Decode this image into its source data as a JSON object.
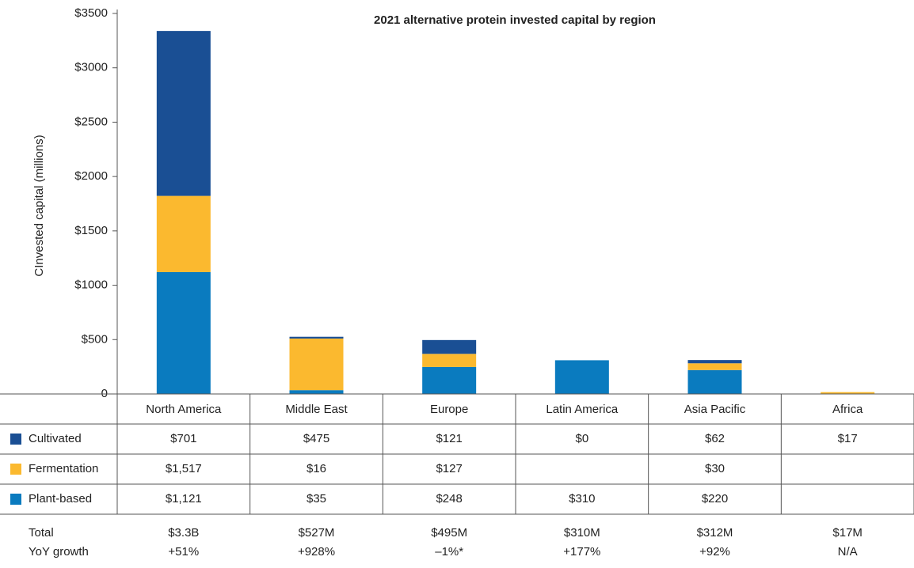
{
  "chart_data": {
    "type": "bar",
    "title": "2021 alternative protein invested capital by region",
    "y_label": "CInvested capital (millions)",
    "categories": [
      "North America",
      "Middle East",
      "Europe",
      "Latin America",
      "Asia Pacific",
      "Africa"
    ],
    "series": [
      {
        "name": "Cultivated",
        "color": "#1a4f94",
        "bar_color": "#fbb92f",
        "values": [
          701,
          475,
          121,
          0,
          62,
          17
        ],
        "value_labels": [
          "$701",
          "$475",
          "$121",
          "$0",
          "$62",
          "$17"
        ]
      },
      {
        "name": "Fermentation",
        "color": "#fbb92f",
        "bar_color": "#1a4f94",
        "values": [
          1517,
          16,
          127,
          null,
          30,
          null
        ],
        "value_labels": [
          "$1,517",
          "$16",
          "$127",
          null,
          "$30",
          null
        ]
      },
      {
        "name": "Plant-based",
        "color": "#0a7bbf",
        "bar_color": "#0a7bbf",
        "values": [
          1121,
          35,
          248,
          310,
          220,
          null
        ],
        "value_labels": [
          "$1,121",
          "$35",
          "$248",
          "$310",
          "$220",
          null
        ]
      }
    ],
    "stack_order": [
      "Plant-based",
      "Cultivated",
      "Fermentation"
    ],
    "ylim": [
      0,
      3500
    ],
    "yticks": [
      0,
      {
        "value": 500,
        "label": "$500"
      },
      {
        "value": 1000,
        "label": "$1000"
      },
      {
        "value": 1500,
        "label": "$1500"
      },
      {
        "value": 2000,
        "label": "$2000"
      },
      {
        "value": 2500,
        "label": "$2500"
      },
      {
        "value": 3000,
        "label": "$3000"
      },
      {
        "value": 3500,
        "label": "$3500"
      }
    ],
    "total_label": "Total",
    "totals": [
      "$3.3B",
      "$527M",
      "$495M",
      "$310M",
      "$312M",
      "$17M"
    ],
    "growth_label": "YoY growth",
    "growth": [
      "+51%",
      "+928%",
      "–1%*",
      "+177%",
      "+92%",
      "N/A"
    ]
  }
}
